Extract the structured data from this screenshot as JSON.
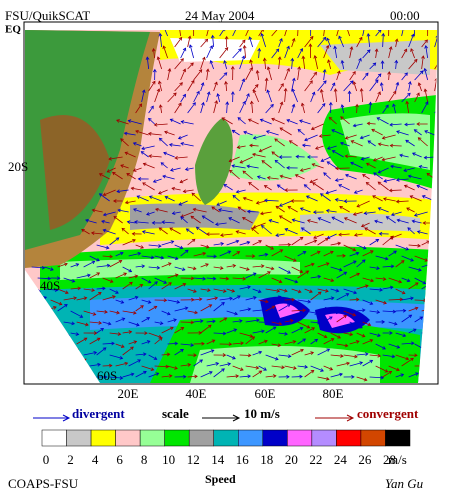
{
  "header": {
    "source": "FSU/QuikSCAT",
    "date": "24 May 2004",
    "time": "00:00"
  },
  "map": {
    "lat_labels": [
      "EQ",
      "20S",
      "40S",
      "60S"
    ],
    "lon_labels": [
      "20E",
      "40E",
      "60E",
      "80E"
    ]
  },
  "legend": {
    "divergent": "divergent",
    "scale": "scale",
    "scale_value": "10 m/s",
    "convergent": "convergent"
  },
  "colorbar": {
    "colors": [
      "#ffffff",
      "#c8c8c8",
      "#ffff00",
      "#ffc8c8",
      "#96ff96",
      "#00e600",
      "#a0a0a0",
      "#00b4b4",
      "#3c96ff",
      "#0000c8",
      "#ff64ff",
      "#b48cff",
      "#ff0000",
      "#d24600",
      "#000000"
    ],
    "labels": [
      0,
      2,
      4,
      6,
      8,
      10,
      12,
      14,
      16,
      18,
      20,
      22,
      24,
      26,
      28
    ],
    "unit": "m/s"
  },
  "footer": {
    "org": "COAPS-FSU",
    "variable": "Speed",
    "author": "Yan Gu"
  }
}
